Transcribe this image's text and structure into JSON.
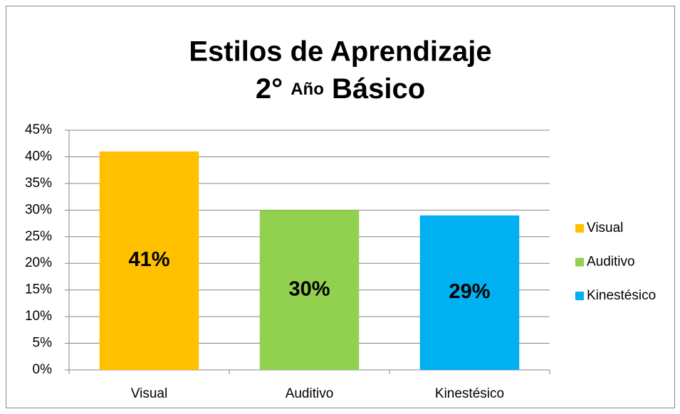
{
  "chart_data": {
    "type": "bar",
    "title": "Estilos de Aprendizaje",
    "subtitle": [
      "2°",
      "Año",
      "Básico"
    ],
    "categories": [
      "Visual",
      "Auditivo",
      "Kinestésico"
    ],
    "values": [
      41,
      30,
      29
    ],
    "value_labels": [
      "41%",
      "30%",
      "29%"
    ],
    "colors": [
      "#FFC000",
      "#92D050",
      "#00B0F0"
    ],
    "ylim": [
      0,
      45
    ],
    "yticks": [
      {
        "value": 0,
        "label": "0%"
      },
      {
        "value": 5,
        "label": "5%"
      },
      {
        "value": 10,
        "label": "10%"
      },
      {
        "value": 15,
        "label": "15%"
      },
      {
        "value": 20,
        "label": "20%"
      },
      {
        "value": 25,
        "label": "25%"
      },
      {
        "value": 30,
        "label": "30%"
      },
      {
        "value": 35,
        "label": "35%"
      },
      {
        "value": 40,
        "label": "40%"
      },
      {
        "value": 45,
        "label": "45%"
      }
    ],
    "grid": true,
    "legend": "right"
  }
}
